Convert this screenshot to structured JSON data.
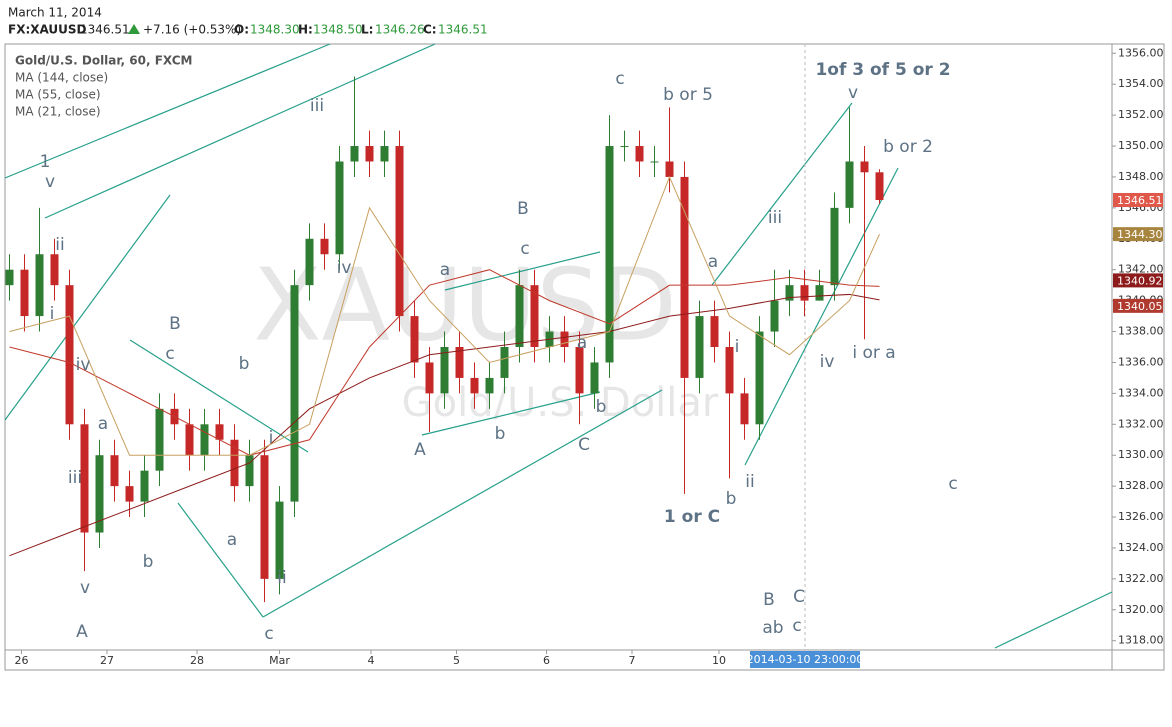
{
  "header": {
    "date": "March 11, 2014",
    "symbol": "FX:XAUUSD",
    "last": "1346.51",
    "change": "+7.16 (+0.53%)",
    "o_label": "O:",
    "o": "1348.30",
    "h_label": "H:",
    "h": "1348.50",
    "l_label": "L:",
    "l": "1346.26",
    "c_label": "C:",
    "c": "1346.51"
  },
  "chart_data": {
    "type": "candlestick",
    "title": "Gold/U.S. Dollar, 60, FXCM",
    "watermark": [
      "XAUUSD",
      "Gold/U.S. Dollar"
    ],
    "up_color": "#2e7d32",
    "down_color": "#c62828",
    "open": [
      1341,
      1342,
      1339,
      1343,
      1341,
      1332,
      1325,
      1330,
      1328,
      1327,
      1329,
      1333,
      1332,
      1330,
      1332,
      1331,
      1328,
      1330,
      1322,
      1327,
      1341,
      1344,
      1343,
      1349,
      1350,
      1349,
      1350,
      1339,
      1336,
      1334,
      1337,
      1335,
      1334,
      1335,
      1337,
      1341,
      1337,
      1338,
      1337,
      1334,
      1336,
      1350,
      1350,
      1349,
      1349,
      1348,
      1335,
      1339,
      1337,
      1334,
      1332,
      1338,
      1340,
      1341,
      1340,
      1341,
      1346,
      1349,
      1348.3
    ],
    "high": [
      1343,
      1343,
      1346,
      1344,
      1342,
      1333,
      1331,
      1331,
      1329,
      1330,
      1334,
      1334,
      1333,
      1333,
      1333,
      1332,
      1331,
      1331,
      1328,
      1342,
      1345,
      1345,
      1350,
      1354.5,
      1351,
      1351,
      1351,
      1340,
      1337,
      1338,
      1338,
      1336,
      1336,
      1338,
      1342,
      1342,
      1339,
      1339,
      1338,
      1337,
      1352,
      1351,
      1351,
      1350,
      1352.5,
      1349,
      1340,
      1340,
      1338,
      1335,
      1339,
      1342,
      1342,
      1342,
      1342,
      1347,
      1352.5,
      1350,
      1348.5
    ],
    "low": [
      1340,
      1338,
      1338,
      1340,
      1331,
      1322.5,
      1324,
      1327,
      1326,
      1326,
      1328,
      1331,
      1329,
      1329,
      1330,
      1327,
      1327,
      1320.5,
      1321,
      1326,
      1340,
      1342,
      1342,
      1348,
      1348,
      1348,
      1338,
      1335,
      1331.5,
      1333,
      1334,
      1333,
      1333,
      1334,
      1336,
      1336,
      1336,
      1336,
      1332,
      1333,
      1335,
      1349,
      1348,
      1348,
      1347,
      1327.5,
      1334,
      1336,
      1328.5,
      1331,
      1331,
      1337,
      1339,
      1339,
      1340,
      1340,
      1345,
      1337.5,
      1346.26
    ],
    "close": [
      1342,
      1339,
      1343,
      1341,
      1332,
      1325,
      1330,
      1328,
      1327,
      1329,
      1333,
      1332,
      1330,
      1332,
      1331,
      1328,
      1330,
      1322,
      1327,
      1341,
      1344,
      1343,
      1349,
      1350,
      1349,
      1350,
      1339,
      1336,
      1334,
      1337,
      1335,
      1334,
      1335,
      1337,
      1341,
      1337,
      1338,
      1337,
      1334,
      1336,
      1350,
      1350,
      1349,
      1349,
      1348,
      1335,
      1339,
      1337,
      1334,
      1332,
      1338,
      1340,
      1341,
      1340,
      1341,
      1346,
      1349,
      1348.3,
      1346.51
    ],
    "series": [
      {
        "name": "MA (144, close)",
        "color": "#8e1b1b",
        "x": [
          0,
          4,
          8,
          12,
          16,
          20,
          24,
          28,
          32,
          36,
          40,
          44,
          48,
          52,
          56,
          58
        ],
        "values": [
          1323.5,
          1325,
          1326.5,
          1328,
          1329.5,
          1333,
          1335,
          1336.5,
          1337,
          1337.5,
          1338,
          1339,
          1339.5,
          1340.2,
          1340.4,
          1340.05
        ]
      },
      {
        "name": "MA (55, close)",
        "color": "#c0392b",
        "x": [
          0,
          4,
          8,
          12,
          16,
          20,
          24,
          28,
          32,
          36,
          40,
          44,
          48,
          52,
          56,
          58
        ],
        "values": [
          1337,
          1336,
          1334,
          1332,
          1330,
          1331,
          1337,
          1341,
          1342,
          1340,
          1338.5,
          1341,
          1341,
          1341.5,
          1341,
          1340.92
        ]
      },
      {
        "name": "MA (21, close)",
        "color": "#c8a060",
        "x": [
          0,
          4,
          8,
          12,
          16,
          20,
          24,
          28,
          32,
          36,
          40,
          44,
          48,
          52,
          56,
          58
        ],
        "values": [
          1338,
          1339,
          1330,
          1330,
          1330,
          1332,
          1346,
          1340,
          1336,
          1337,
          1338,
          1348,
          1339,
          1336.5,
          1340,
          1344.3
        ]
      }
    ],
    "price_tags": [
      {
        "value": 1346.51,
        "label": "1346.51",
        "color": "#e0584a"
      },
      {
        "value": 1344.3,
        "label": "1344.30",
        "color": "#a8853e"
      },
      {
        "value": 1340.92,
        "label": "1340.92",
        "color": "#8e1b1b"
      },
      {
        "value": 1340.05,
        "label": "1340.05",
        "color": "#b03a2e"
      }
    ],
    "xlim": [
      -0.3,
      73.5
    ],
    "ylim": [
      1317.4,
      1356.6
    ],
    "xticks": [
      {
        "value": 0.8,
        "label": "26"
      },
      {
        "value": 6.5,
        "label": "27"
      },
      {
        "value": 12.5,
        "label": "28"
      },
      {
        "value": 18,
        "label": "Mar"
      },
      {
        "value": 24.1,
        "label": "4"
      },
      {
        "value": 29.8,
        "label": "5"
      },
      {
        "value": 35.8,
        "label": "6"
      },
      {
        "value": 41.5,
        "label": "7"
      },
      {
        "value": 47.3,
        "label": "10"
      }
    ],
    "yticks": [
      {
        "value": 1318,
        "label": "1318.00"
      },
      {
        "value": 1320,
        "label": "1320.00"
      },
      {
        "value": 1322,
        "label": "1322.00"
      },
      {
        "value": 1324,
        "label": "1324.00"
      },
      {
        "value": 1326,
        "label": "1326.00"
      },
      {
        "value": 1328,
        "label": "1328.00"
      },
      {
        "value": 1330,
        "label": "1330.00"
      },
      {
        "value": 1332,
        "label": "1332.00"
      },
      {
        "value": 1334,
        "label": "1334.00"
      },
      {
        "value": 1336,
        "label": "1336.00"
      },
      {
        "value": 1338,
        "label": "1338.00"
      },
      {
        "value": 1340,
        "label": "1340.00"
      },
      {
        "value": 1342,
        "label": "1342.00"
      },
      {
        "value": 1344,
        "label": "1344.00"
      },
      {
        "value": 1346,
        "label": "1346.00"
      },
      {
        "value": 1348,
        "label": "1348.00"
      },
      {
        "value": 1350,
        "label": "1350.00"
      },
      {
        "value": 1352,
        "label": "1352.00"
      },
      {
        "value": 1354,
        "label": "1354.00"
      },
      {
        "value": 1356,
        "label": "1356.00"
      }
    ],
    "crosshair_label": "2014-03-10 23:00:00",
    "annotations": [
      "1",
      "v",
      "ii",
      "i",
      "iv",
      "a",
      "iii",
      "b",
      "v",
      "A",
      "B",
      "c",
      "b",
      "a",
      "i",
      "ii",
      "c",
      "iii",
      "iv",
      "a",
      "A",
      "b",
      "B",
      "c",
      "a",
      "b",
      "C",
      "c",
      "b or 5",
      "1 or C",
      "b",
      "a",
      "i",
      "ii",
      "iii",
      "iv",
      "v",
      "1of 3 of 5 or 2",
      "b or 2",
      "i or a",
      "c",
      "B",
      "C",
      "ab",
      "c"
    ]
  }
}
